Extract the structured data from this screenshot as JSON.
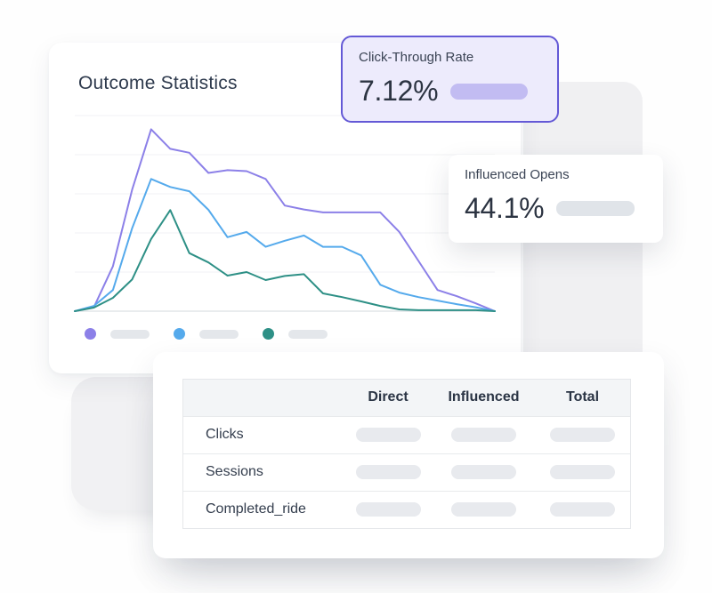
{
  "page": {
    "background": "#FEFEFE"
  },
  "chart_card": {
    "title": "Outcome Statistics"
  },
  "chart_data": {
    "type": "line",
    "title": "Outcome Statistics",
    "x": [
      0,
      1,
      2,
      3,
      4,
      5,
      6,
      7,
      8,
      9,
      10,
      11,
      12,
      13,
      14,
      15,
      16,
      17,
      18,
      19,
      20,
      21,
      22
    ],
    "series": [
      {
        "name": "purple-series",
        "color": "#8C80E8",
        "values": [
          0,
          2,
          23,
          62,
          93,
          83,
          81,
          70.7,
          72.1,
          71.6,
          67.6,
          54,
          52,
          50.5,
          50.5,
          50.5,
          50.5,
          40.5,
          25.7,
          10.8,
          7.7,
          4,
          0
        ]
      },
      {
        "name": "blue-series",
        "color": "#55AAEC",
        "values": [
          0,
          2.7,
          10.8,
          42.3,
          67.6,
          63.5,
          61.3,
          51.8,
          37.8,
          40.5,
          32.9,
          36,
          38.7,
          32.9,
          32.9,
          28.5,
          13.5,
          9.5,
          7.2,
          5.4,
          3.6,
          2,
          0
        ]
      },
      {
        "name": "teal-series",
        "color": "#2E9086",
        "values": [
          0,
          1.8,
          6.8,
          16.2,
          36.9,
          51.7,
          29.7,
          24.9,
          18.2,
          20,
          15.9,
          18,
          18.9,
          9.1,
          7.2,
          5,
          2.7,
          0.9,
          0.5,
          0.5,
          0.5,
          0.5,
          0
        ]
      }
    ],
    "ylim": [
      0,
      100
    ],
    "grid": "horizontal",
    "gridline_count": 6,
    "axis_tick_labels_visible": false,
    "legend_position": "bottom",
    "legend_labels": [
      "",
      "",
      ""
    ],
    "legend_note": "legend labels shown as gray placeholder pills"
  },
  "stat_cards": {
    "ctr": {
      "label": "Click-Through Rate",
      "value": "7.12%",
      "accent_border": "#6459D6",
      "background": "#EDEBFC",
      "pill_color": "#C2BCF2"
    },
    "influenced_opens": {
      "label": "Influenced Opens",
      "value": "44.1%",
      "pill_color": "#E0E4E9"
    }
  },
  "table": {
    "headers": [
      "Direct",
      "Influenced",
      "Total"
    ],
    "rows": [
      {
        "label": "Clicks"
      },
      {
        "label": "Sessions"
      },
      {
        "label": "Completed_ride"
      }
    ],
    "header_background": "#F3F5F7",
    "placeholder_pill_color": "#E8EAEE"
  },
  "colors": {
    "decorative_shape": "#F0F0F2",
    "legend_placeholder_pill": "#E4E7EB",
    "title_text": "#2E3A4D",
    "value_text": "#2C3442"
  }
}
